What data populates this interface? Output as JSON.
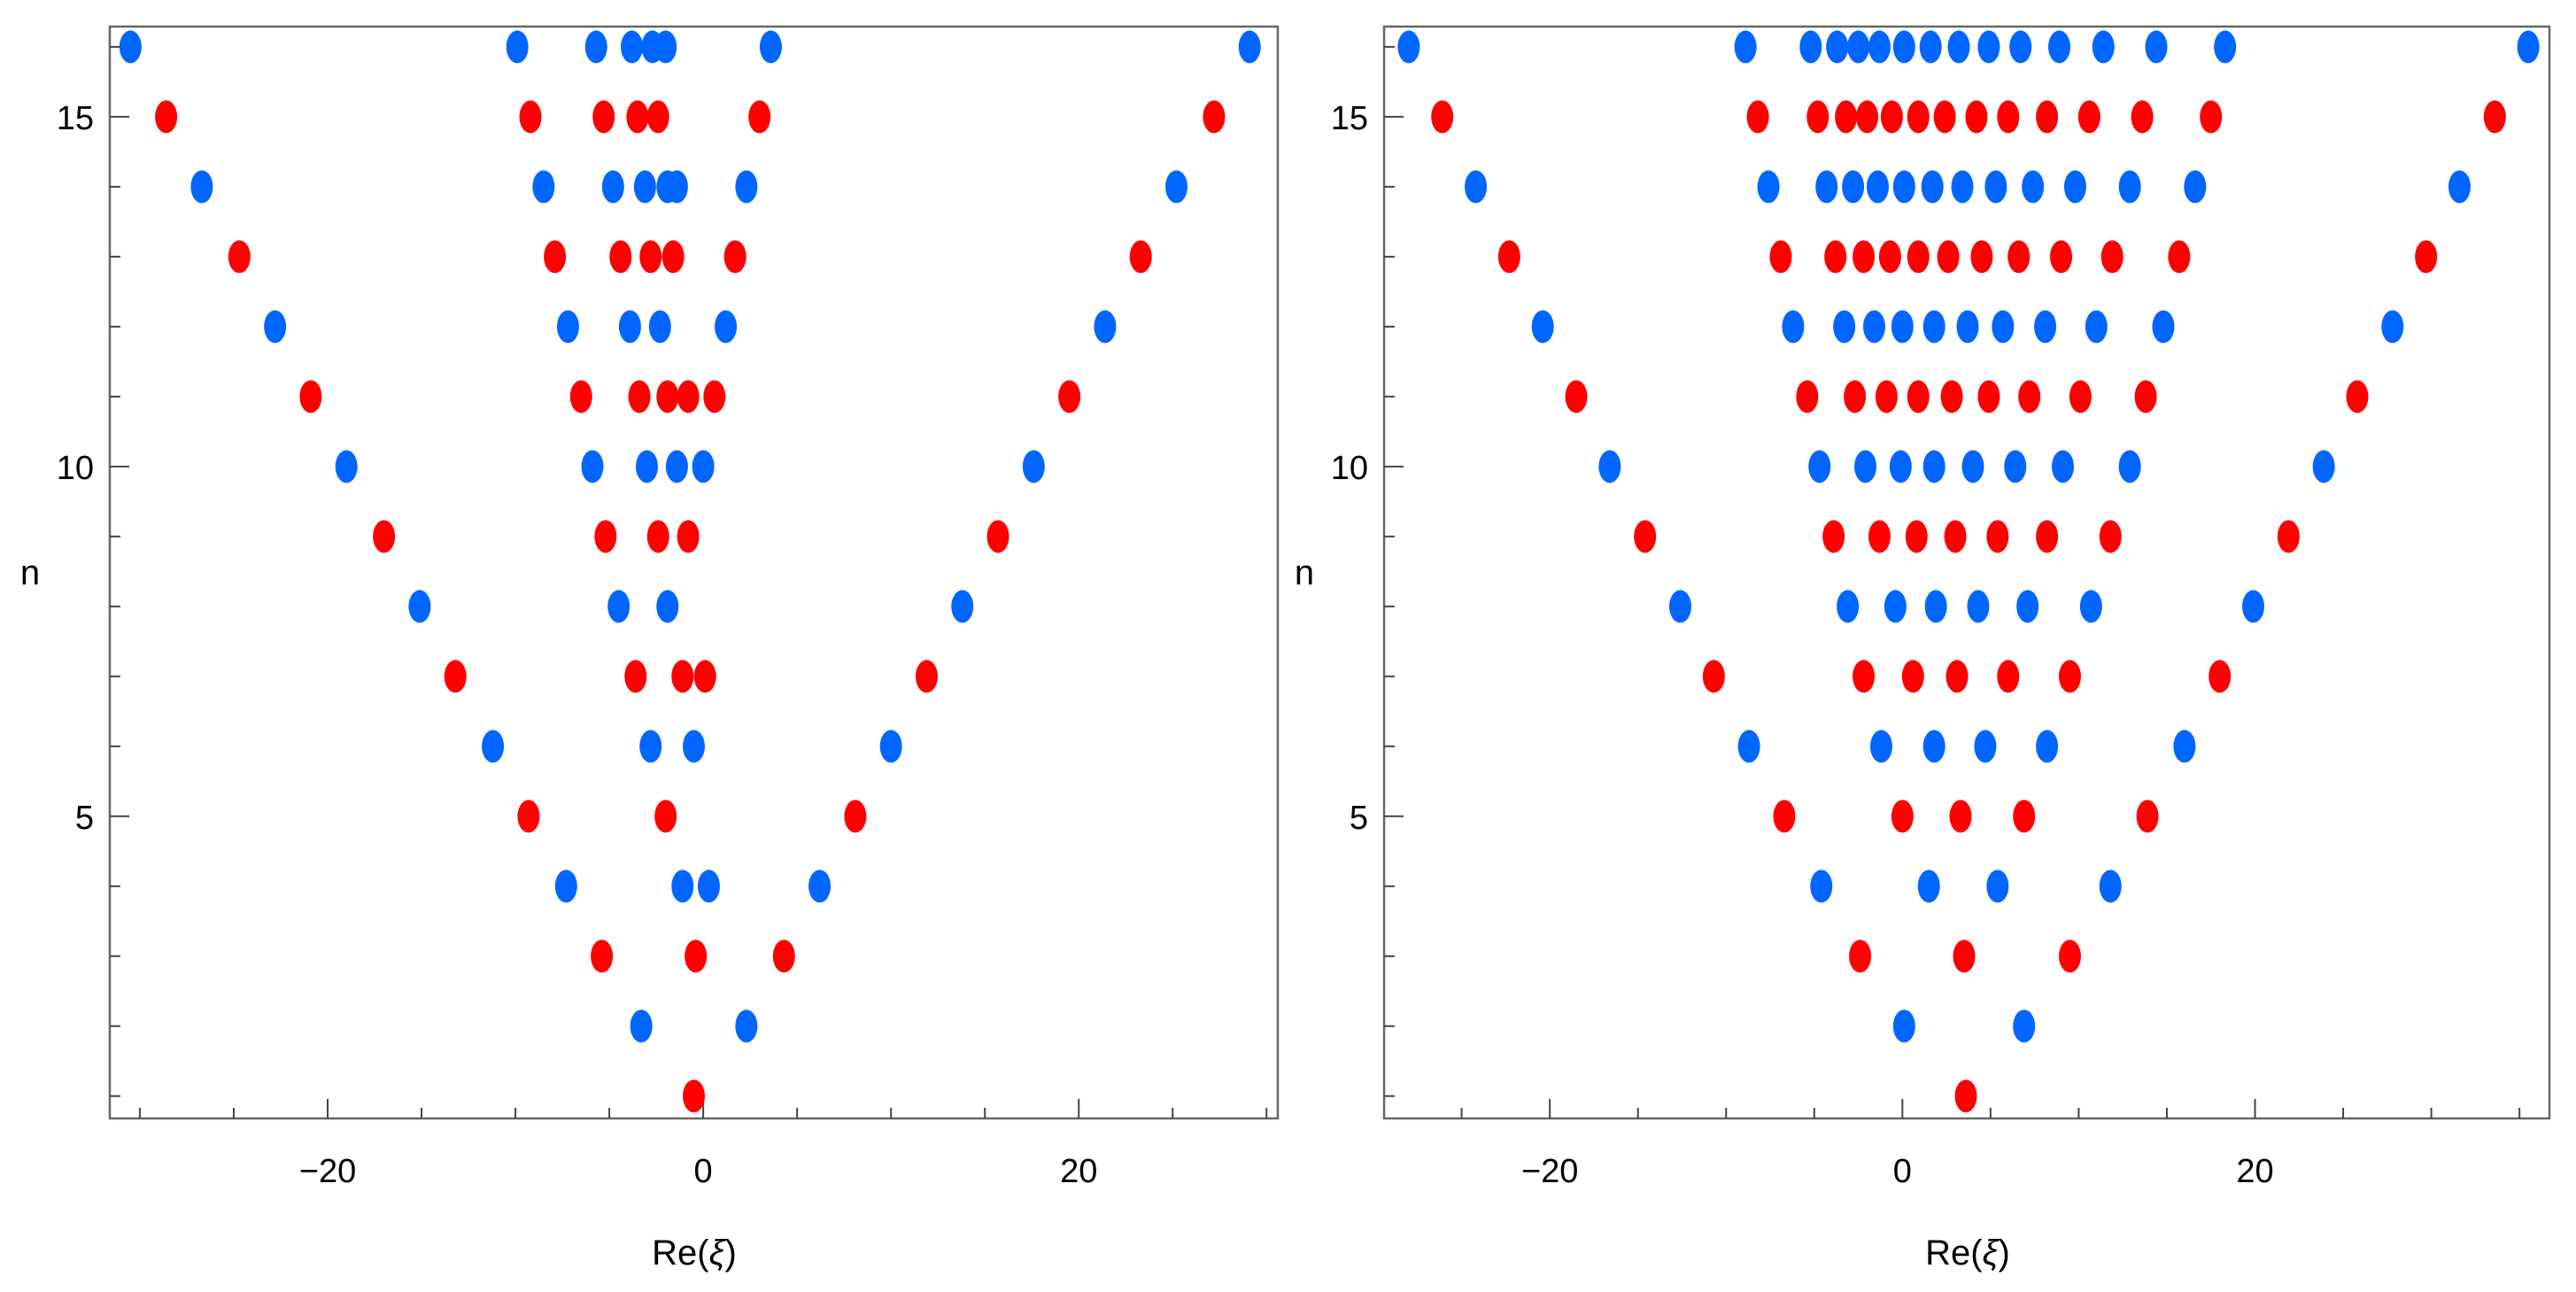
{
  "figure": {
    "description": "Two scatter plots of zeros: n versus Re(xi), two alternating series (blue and red)",
    "colors": {
      "blue": "#0066FF",
      "red": "#FF0000",
      "frame": "#666666",
      "tick": "#444444"
    }
  },
  "chart_data": [
    {
      "type": "scatter",
      "panel": "left",
      "title": "",
      "xlabel": "Re(ξ)",
      "ylabel": "n",
      "xlim": [
        -31.6,
        30.6
      ],
      "ylim": [
        0.68,
        16.29
      ],
      "xticks_major": [
        -20,
        0,
        20
      ],
      "xtick_labels": [
        "-20",
        "0",
        "20"
      ],
      "xticks_minor_step": 5,
      "yticks_major": [
        5,
        10,
        15
      ],
      "ytick_labels": [
        "5",
        "10",
        "15"
      ],
      "yticks_minor_step": 1,
      "grid": false,
      "legend": null,
      "series": [
        {
          "name": "blue (even n)",
          "color": "#0066FF",
          "points": [
            {
              "n": 2,
              "x": [
                -3.3,
                2.3
              ]
            },
            {
              "n": 4,
              "x": [
                -7.3,
                -1.1,
                0.3,
                6.2
              ]
            },
            {
              "n": 6,
              "x": [
                -11.2,
                -2.8,
                -0.5,
                10.0
              ]
            },
            {
              "n": 8,
              "x": [
                -15.1,
                -4.5,
                -1.9,
                13.8
              ]
            },
            {
              "n": 10,
              "x": [
                -19.0,
                -5.9,
                -3.0,
                -1.4,
                0.0,
                17.6
              ]
            },
            {
              "n": 12,
              "x": [
                -22.8,
                -7.2,
                -3.9,
                -2.3,
                1.2,
                21.4
              ]
            },
            {
              "n": 14,
              "x": [
                -26.7,
                -8.5,
                -4.8,
                -3.1,
                -1.9,
                -1.4,
                2.3,
                25.2
              ]
            },
            {
              "n": 16,
              "x": [
                -30.5,
                -9.9,
                -5.7,
                -3.8,
                -2.7,
                -2.0,
                3.6,
                29.1
              ]
            }
          ]
        },
        {
          "name": "red (odd n)",
          "color": "#FF0000",
          "points": [
            {
              "n": 1,
              "x": [
                -0.5
              ]
            },
            {
              "n": 3,
              "x": [
                -5.4,
                -0.4,
                4.3
              ]
            },
            {
              "n": 5,
              "x": [
                -9.3,
                -2.0,
                8.1
              ]
            },
            {
              "n": 7,
              "x": [
                -13.2,
                -3.6,
                -1.1,
                0.1,
                11.9
              ]
            },
            {
              "n": 9,
              "x": [
                -17.0,
                -5.2,
                -2.4,
                -0.8,
                15.7
              ]
            },
            {
              "n": 11,
              "x": [
                -20.9,
                -6.5,
                -3.4,
                -1.9,
                -0.8,
                0.6,
                19.5
              ]
            },
            {
              "n": 13,
              "x": [
                -24.7,
                -7.9,
                -4.4,
                -2.8,
                -1.6,
                1.7,
                23.3
              ]
            },
            {
              "n": 15,
              "x": [
                -28.6,
                -9.2,
                -5.3,
                -3.5,
                -2.4,
                3.0,
                27.2
              ]
            }
          ]
        }
      ]
    },
    {
      "type": "scatter",
      "panel": "right",
      "title": "",
      "xlabel": "Re(ξ)",
      "ylabel": "n",
      "xlim": [
        -29.4,
        36.7
      ],
      "ylim": [
        0.68,
        16.29
      ],
      "xticks_major": [
        -20,
        0,
        20
      ],
      "xtick_labels": [
        "-20",
        "0",
        "20"
      ],
      "xticks_minor_step": 5,
      "yticks_major": [
        5,
        10,
        15
      ],
      "ytick_labels": [
        "5",
        "10",
        "15"
      ],
      "yticks_minor_step": 1,
      "grid": false,
      "legend": null,
      "series": [
        {
          "name": "blue (even n)",
          "color": "#0066FF",
          "points": [
            {
              "n": 2,
              "x": [
                0.1,
                6.9
              ]
            },
            {
              "n": 4,
              "x": [
                -4.6,
                1.5,
                5.4,
                11.8
              ]
            },
            {
              "n": 6,
              "x": [
                -8.7,
                -1.2,
                1.8,
                4.7,
                8.2,
                16.0
              ]
            },
            {
              "n": 8,
              "x": [
                -12.6,
                -3.1,
                -0.4,
                1.9,
                4.3,
                7.1,
                10.7,
                19.9
              ]
            },
            {
              "n": 10,
              "x": [
                -16.6,
                -4.7,
                -2.1,
                -0.1,
                1.8,
                4.0,
                6.4,
                9.1,
                12.9,
                23.9
              ]
            },
            {
              "n": 12,
              "x": [
                -20.4,
                -6.2,
                -3.3,
                -1.6,
                0.0,
                1.8,
                3.7,
                5.7,
                8.1,
                11.0,
                14.8,
                27.8
              ]
            },
            {
              "n": 14,
              "x": [
                -24.2,
                -7.6,
                -4.3,
                -2.8,
                -1.4,
                0.1,
                1.7,
                3.4,
                5.3,
                7.4,
                9.8,
                12.9,
                16.6,
                31.6
              ]
            },
            {
              "n": 16,
              "x": [
                -28.0,
                -8.9,
                -5.2,
                -3.7,
                -2.5,
                -1.3,
                0.1,
                1.6,
                3.2,
                4.9,
                6.7,
                8.9,
                11.4,
                14.4,
                18.3,
                35.5
              ]
            }
          ]
        },
        {
          "name": "red (odd n)",
          "color": "#FF0000",
          "points": [
            {
              "n": 1,
              "x": [
                3.6
              ]
            },
            {
              "n": 3,
              "x": [
                -2.4,
                3.5,
                9.5
              ]
            },
            {
              "n": 5,
              "x": [
                -6.7,
                0.0,
                3.3,
                6.9,
                13.9
              ]
            },
            {
              "n": 7,
              "x": [
                -10.7,
                -2.2,
                0.6,
                3.1,
                6.0,
                9.5,
                18.0
              ]
            },
            {
              "n": 9,
              "x": [
                -14.6,
                -3.9,
                -1.3,
                0.8,
                3.0,
                5.4,
                8.2,
                11.8,
                21.9
              ]
            },
            {
              "n": 11,
              "x": [
                -18.5,
                -5.4,
                -2.7,
                -0.9,
                0.9,
                2.8,
                4.9,
                7.2,
                10.1,
                13.8,
                25.8
              ]
            },
            {
              "n": 13,
              "x": [
                -22.3,
                -6.9,
                -3.8,
                -2.2,
                -0.7,
                0.9,
                2.6,
                4.5,
                6.6,
                9.0,
                11.9,
                15.7,
                29.7
              ]
            },
            {
              "n": 15,
              "x": [
                -26.1,
                -8.2,
                -4.8,
                -3.2,
                -2.0,
                -0.6,
                0.9,
                2.4,
                4.2,
                6.0,
                8.2,
                10.6,
                13.6,
                17.5,
                33.6
              ]
            }
          ]
        }
      ]
    }
  ],
  "panels": {
    "left": {
      "xlabel": "Re(ξ)",
      "ylabel": "n"
    },
    "right": {
      "xlabel": "Re(ξ)",
      "ylabel": "n"
    }
  }
}
